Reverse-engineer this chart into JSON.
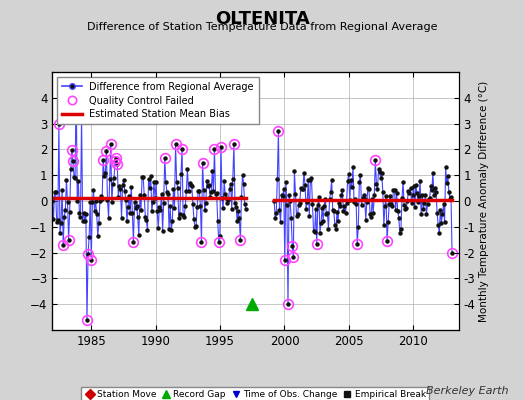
{
  "title": "OLTENITA",
  "subtitle": "Difference of Station Temperature Data from Regional Average",
  "ylabel_right": "Monthly Temperature Anomaly Difference (°C)",
  "xlim": [
    1982.0,
    2013.5
  ],
  "ylim": [
    -5,
    5
  ],
  "yticks": [
    -4,
    -3,
    -2,
    -1,
    0,
    1,
    2,
    3,
    4
  ],
  "ytick_labels_left": [
    "-4",
    "-3",
    "-2",
    "-1",
    "0",
    "1",
    "2",
    "3",
    "4"
  ],
  "xticks": [
    1985,
    1990,
    1995,
    2000,
    2005,
    2010
  ],
  "mean_bias_seg1": 0.1,
  "mean_bias_seg2": 0.05,
  "gap_start": 1997.0,
  "gap_end": 1999.2,
  "background_color": "#d3d3d3",
  "plot_bg_color": "#ffffff",
  "grid_color": "#b0b0b0",
  "line_color": "#4444ff",
  "bias_color": "#dd0000",
  "qc_color": "#ff44ff",
  "watermark": "Berkeley Earth",
  "record_gap_x": 1997.5,
  "record_gap_y": -4.0,
  "seed": 123
}
